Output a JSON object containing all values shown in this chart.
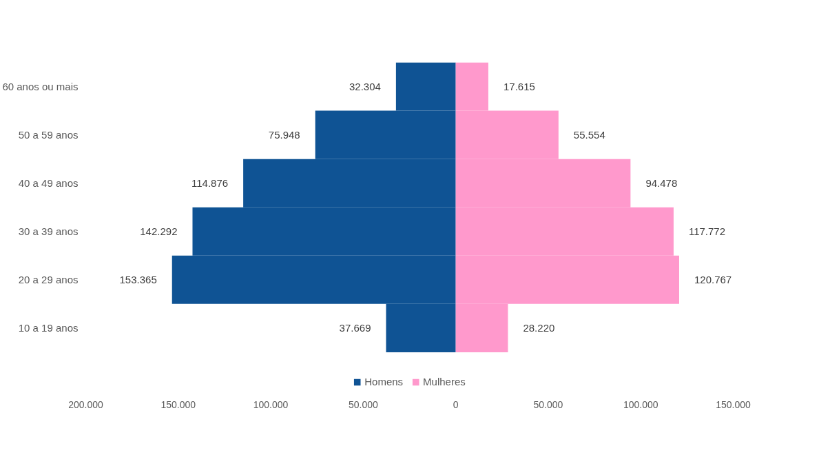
{
  "chart_data": {
    "type": "bar",
    "orientation": "horizontal",
    "categories": [
      "60 anos ou mais",
      "50 a 59 anos",
      "40 a 49 anos",
      "30 a 39 anos",
      "20 a 29 anos",
      "10 a 19 anos"
    ],
    "series": [
      {
        "name": "Homens",
        "color": "#0f5394",
        "values": [
          32304,
          75948,
          114876,
          142292,
          153365,
          37669
        ],
        "base": [
          -32304,
          -75948,
          -114876,
          -142292,
          -153365,
          -37669
        ],
        "value_labels": [
          "32.304",
          "75.948",
          "114.876",
          "142.292",
          "153.365",
          "37.669"
        ]
      },
      {
        "name": "Mulheres",
        "color": "#ff99cc",
        "values": [
          17615,
          55554,
          94478,
          117772,
          120767,
          28220
        ],
        "value_labels": [
          "17.615",
          "55.554",
          "94.478",
          "117.772",
          "120.767",
          "28.220"
        ]
      }
    ],
    "xlim": [
      -200000,
      150000
    ],
    "xticks": [
      {
        "value": -200000,
        "label": "200.000"
      },
      {
        "value": -150000,
        "label": "150.000"
      },
      {
        "value": -100000,
        "label": "100.000"
      },
      {
        "value": -50000,
        "label": "50.000"
      },
      0,
      {
        "value": 50000,
        "label": "50.000"
      },
      {
        "value": 100000,
        "label": "100.000"
      },
      {
        "value": 150000,
        "label": "150.000"
      }
    ],
    "grid": false,
    "legend": "bottom"
  }
}
